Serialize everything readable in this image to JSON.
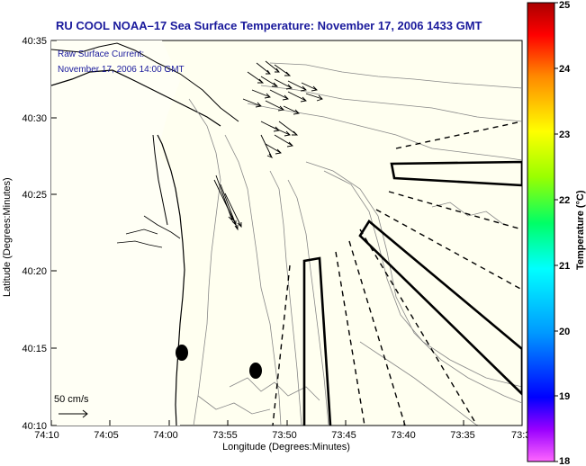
{
  "title": "RU COOL  NOAA–17  Sea Surface Temperature:  November 17, 2006 1433 GMT",
  "current_legend": {
    "line1": "Raw Surface Current:",
    "line2": "November 17, 2006 14:00 GMT",
    "scale_label": "50 cm/s"
  },
  "axes": {
    "xlabel": "Longitude (Degrees:Minutes)",
    "ylabel": "Latitude (Degrees:Minutes)",
    "x_ticks": [
      "74:10",
      "74:05",
      "74:00",
      "73:55",
      "73:50",
      "73:45",
      "73:40",
      "73:35",
      "73:3"
    ],
    "y_ticks": [
      "40:35",
      "40:30",
      "40:25",
      "40:20",
      "40:15",
      "40:10"
    ]
  },
  "colorbar": {
    "label": "Temperature (°C)",
    "ticks": [
      "25",
      "24",
      "23",
      "22",
      "21",
      "20",
      "19",
      "18"
    ],
    "range": [
      18,
      25
    ]
  },
  "colors": {
    "title": "#1a1a9c",
    "land_water_bg": "#fffff0",
    "coastline": "#000000",
    "bathymetry": "#888888"
  }
}
